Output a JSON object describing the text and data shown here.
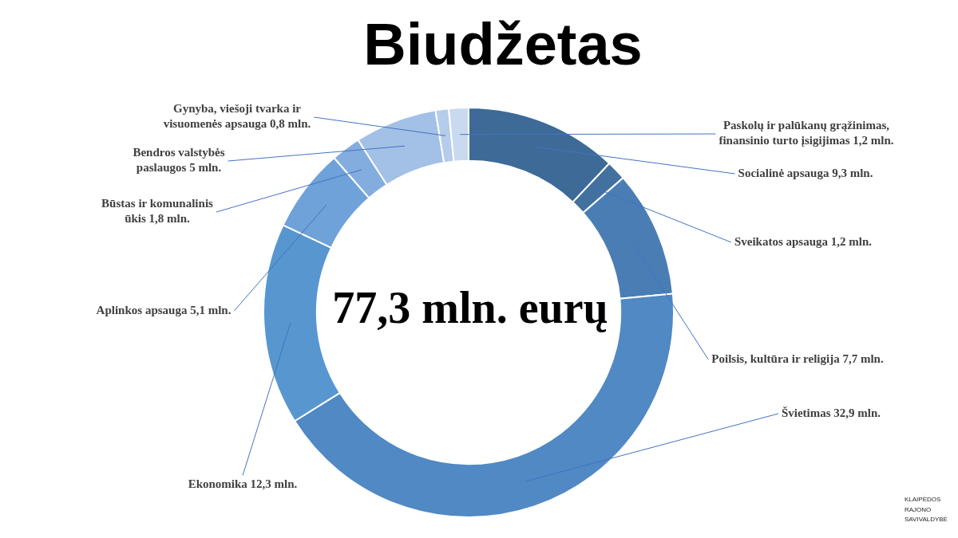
{
  "chart_data": {
    "type": "donut",
    "title": "Biudžetas",
    "categories": [
      "Socialinė apsauga",
      "Sveikatos apsauga",
      "Poilsis, kultūra ir religija",
      "Švietimas",
      "Ekonomika",
      "Aplinkos apsauga",
      "Būstas ir komunalinis ūkis",
      "Bendros valstybės paslaugos",
      "Gynyba, viešoji tvarka ir visuomenės apsauga",
      "Paskolų ir palūkanų grąžinimas, finansinio turto įsigijimas"
    ],
    "values": [
      9.3,
      1.2,
      7.7,
      32.9,
      12.3,
      5.1,
      1.8,
      5,
      0.8,
      1.2
    ],
    "value_labels": [
      "9,3 mln.",
      "1,2 mln.",
      "7,7 mln.",
      "32,9 mln.",
      "12,3 mln.",
      "5,1 mln.",
      "1,8 mln.",
      "5 mln.",
      "0,8 mln.",
      "1,2 mln."
    ],
    "colors": [
      "#3d6a97",
      "#43719f",
      "#4a7db4",
      "#5089c3",
      "#5896d0",
      "#6ea2d8",
      "#84addf",
      "#a3c0e6",
      "#b5cceb",
      "#c9d9ef"
    ],
    "legend": false,
    "annotations": [
      "77,3 mln. eurų",
      "KLAIPĖDOS RAJONO SAVIVALDYBĖ"
    ]
  }
}
